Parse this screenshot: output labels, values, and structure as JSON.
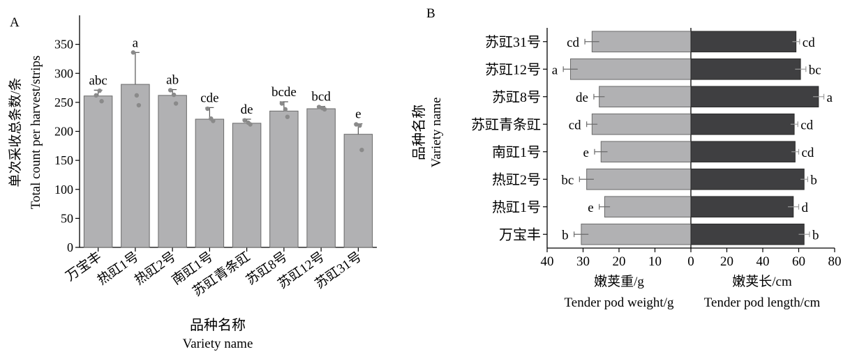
{
  "panels": {
    "a": "A",
    "b": "B"
  },
  "chart_data": [
    {
      "type": "bar",
      "panel": "A",
      "ylabel_cn": "单次采收总条数/条",
      "ylabel_en": "Total count per harvest/strips",
      "xlabel_cn": "品种名称",
      "xlabel_en": "Variety name",
      "ylim": [
        0,
        400
      ],
      "yticks": [
        0,
        50,
        100,
        150,
        200,
        250,
        300,
        350
      ],
      "categories": [
        "万宝丰",
        "热豇1号",
        "热豇2号",
        "南豇1号",
        "苏豇青条豇",
        "苏豇8号",
        "苏豇12号",
        "苏豇31号"
      ],
      "values": [
        261,
        281,
        262,
        221,
        214,
        235,
        239,
        195
      ],
      "error_upper": [
        271,
        336,
        272,
        241,
        221,
        251,
        243,
        213
      ],
      "letters": [
        "abc",
        "a",
        "ab",
        "cde",
        "de",
        "bcde",
        "bcd",
        "e"
      ],
      "points": [
        [
          262,
          270,
          252
        ],
        [
          336,
          262,
          245
        ],
        [
          271,
          263,
          248
        ],
        [
          239,
          222,
          218
        ],
        [
          219,
          215,
          212
        ],
        [
          248,
          238,
          225
        ],
        [
          242,
          240,
          238
        ],
        [
          212,
          210,
          168
        ]
      ],
      "colors": {
        "bar": "#b1b1b3",
        "edge": "#6a6a6a",
        "point": "#8a8a8a"
      }
    },
    {
      "type": "bar",
      "orientation": "horizontal",
      "panel": "B",
      "ylabel_cn": "品种名称",
      "ylabel_en": "Variety name",
      "categories": [
        "苏豇31号",
        "苏豇12号",
        "苏豇8号",
        "苏豇青条豇",
        "南豇1号",
        "热豇2号",
        "热豇1号",
        "万宝丰"
      ],
      "xticks": [
        "40",
        "30",
        "20",
        "10",
        "0",
        "20",
        "40",
        "60",
        "80"
      ],
      "series": [
        {
          "name_cn": "嫩荚重/g",
          "name_en": "Tender pod weight/g",
          "xlim": [
            0,
            40
          ],
          "values": [
            27.5,
            33.5,
            25.5,
            27.5,
            25,
            29,
            24,
            30.5
          ],
          "errors": [
            2,
            2,
            1.5,
            1.5,
            1.8,
            2,
            1.5,
            2
          ],
          "letters": [
            "cd",
            "a",
            "de",
            "cd",
            "e",
            "bc",
            "e",
            "b"
          ],
          "color": "#b1b1b3"
        },
        {
          "name_cn": "嫩荚长/cm",
          "name_en": "Tender pod length/cm",
          "xlim": [
            0,
            80
          ],
          "values": [
            58.5,
            61,
            71,
            57.5,
            58,
            63,
            57,
            63
          ],
          "errors": [
            2,
            3,
            3,
            2,
            2,
            2,
            3,
            3
          ],
          "letters": [
            "cd",
            "bc",
            "a",
            "cd",
            "cd",
            "b",
            "d",
            "b"
          ],
          "color": "#3f3f41"
        }
      ]
    }
  ]
}
